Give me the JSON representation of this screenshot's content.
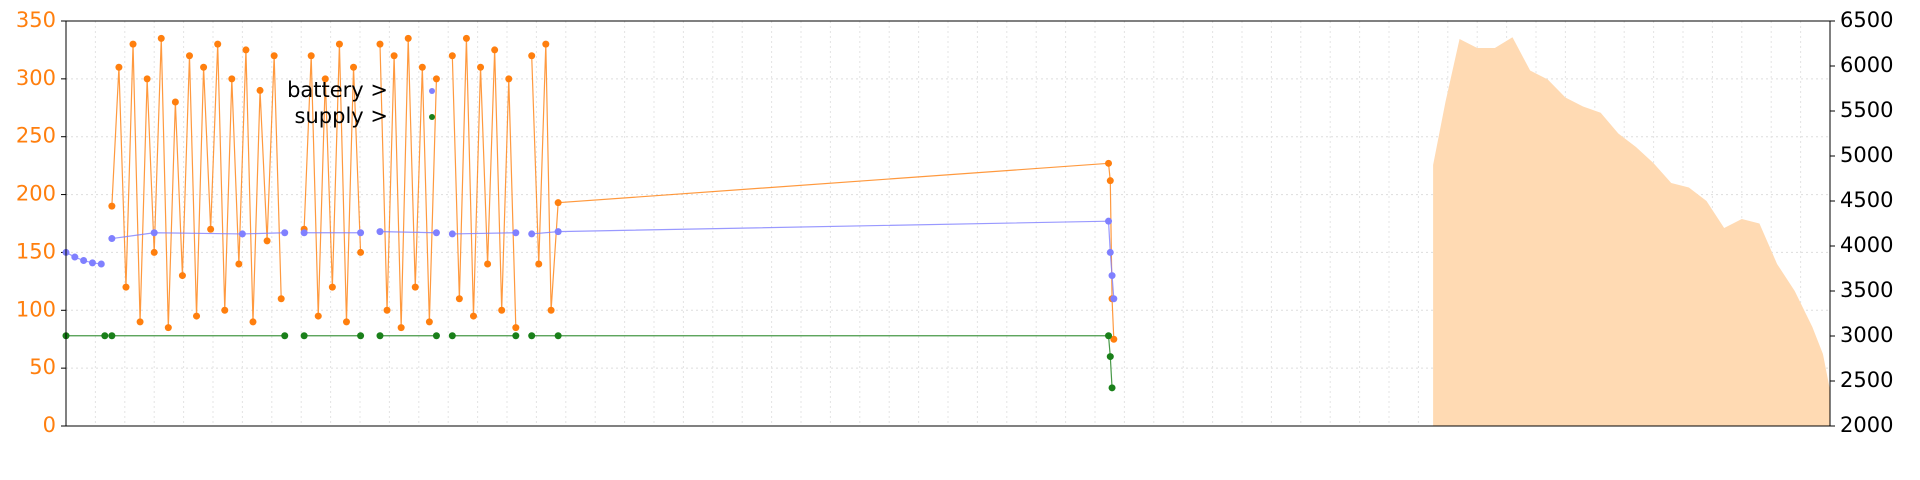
{
  "chart_data": {
    "type": "line",
    "xlim": [
      0,
      100
    ],
    "ylim": [
      0,
      350
    ],
    "yticks": [
      0,
      50,
      100,
      150,
      200,
      250,
      300,
      350
    ],
    "y2lim": [
      2000,
      6500
    ],
    "y2ticks": [
      2000,
      2500,
      3000,
      3500,
      4000,
      4500,
      5000,
      5500,
      6000,
      6500
    ],
    "grid": true,
    "series": [
      {
        "color": "#ffdab3",
        "style": "area",
        "axis": "y2",
        "x": [
          77.5,
          78.2,
          79,
          80,
          81,
          82,
          83,
          84,
          85,
          86,
          87,
          88,
          89,
          90,
          91,
          92,
          93,
          94,
          95,
          96,
          97,
          98,
          99,
          99.6,
          100
        ],
        "values": [
          4900,
          5600,
          6300,
          6200,
          6200,
          6320,
          5950,
          5850,
          5650,
          5550,
          5480,
          5250,
          5100,
          4920,
          4700,
          4650,
          4500,
          4200,
          4300,
          4250,
          3800,
          3500,
          3100,
          2800,
          2400
        ]
      },
      {
        "color": "#ff7f0e",
        "style": "line",
        "x": [
          2.6,
          3,
          3.4,
          3.8,
          4.2,
          4.6,
          5,
          5.4,
          5.8,
          6.2,
          6.6,
          7,
          7.4,
          7.8,
          8.2,
          8.6,
          9,
          9.4,
          9.8,
          10.2,
          10.6,
          11,
          11.4,
          11.8,
          12.2,
          12.8,
          13.5,
          13.9,
          14.3,
          14.7,
          15.1,
          15.5,
          15.9,
          16.3,
          16.7,
          17.2,
          17.8,
          18.2,
          18.6,
          19,
          19.4,
          19.8,
          20.2,
          20.6,
          21,
          21.5,
          21.9,
          22.3,
          22.7,
          23.1,
          23.5,
          23.9,
          24.3,
          24.7,
          25.1,
          25.5,
          25.9,
          26.4,
          26.8,
          27.2,
          27.5,
          27.9,
          59.1,
          59.2,
          59.3,
          59.4
        ],
        "values": [
          190,
          310,
          120,
          330,
          90,
          300,
          150,
          335,
          85,
          280,
          130,
          320,
          95,
          310,
          170,
          330,
          100,
          300,
          140,
          325,
          90,
          290,
          160,
          320,
          110,
          null,
          170,
          320,
          95,
          300,
          120,
          330,
          90,
          310,
          150,
          null,
          330,
          100,
          320,
          85,
          335,
          120,
          310,
          90,
          300,
          null,
          320,
          110,
          335,
          95,
          310,
          140,
          325,
          100,
          300,
          85,
          null,
          320,
          140,
          330,
          100,
          193,
          227,
          212,
          110,
          75
        ]
      },
      {
        "name": "battery >",
        "color": "#8080ff",
        "style": "line",
        "x": [
          0,
          0.5,
          1,
          1.5,
          2,
          2.3,
          2.6,
          5,
          10,
          12.4,
          12.8,
          13.5,
          16.7,
          17.2,
          17.8,
          21,
          21.5,
          21.9,
          25.5,
          25.9,
          26.4,
          27.9,
          59.1,
          59.2,
          59.3,
          59.4
        ],
        "values": [
          150,
          146,
          143,
          141,
          140,
          null,
          162,
          167,
          166,
          167,
          null,
          167,
          167,
          null,
          168,
          167,
          null,
          166,
          167,
          null,
          166,
          168,
          177,
          150,
          130,
          110
        ]
      },
      {
        "name": "supply >",
        "color": "#1a801a",
        "style": "line",
        "x": [
          0,
          2.2,
          2.3,
          2.6,
          12.4,
          12.8,
          13.5,
          16.7,
          17.2,
          17.8,
          21,
          21.5,
          21.9,
          25.5,
          25.9,
          26.4,
          27.9,
          59.1,
          59.2,
          59.3
        ],
        "values": [
          78,
          78,
          null,
          78,
          78,
          null,
          78,
          78,
          null,
          78,
          78,
          null,
          78,
          78,
          null,
          78,
          78,
          78,
          60,
          33
        ]
      }
    ]
  }
}
